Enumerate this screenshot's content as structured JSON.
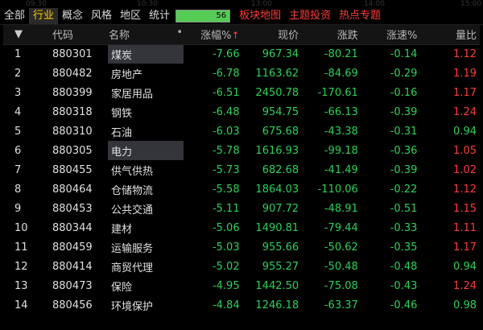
{
  "ghost_times": [
    "09:30",
    "10:30",
    "13:00",
    "14:00",
    "15:00"
  ],
  "tabs": [
    {
      "label": "全部",
      "active": false,
      "red": false
    },
    {
      "label": "行业",
      "active": true,
      "red": false
    },
    {
      "label": "概念",
      "active": false,
      "red": false
    },
    {
      "label": "风格",
      "active": false,
      "red": false
    },
    {
      "label": "地区",
      "active": false,
      "red": false
    },
    {
      "label": "统计",
      "active": false,
      "red": false
    }
  ],
  "tabbox_value": "56",
  "right_tabs": [
    "板块地图",
    "主题投资",
    "热点专题"
  ],
  "header": {
    "sort_arrow": "▼",
    "code": "代码",
    "name": "名称",
    "name_dot": "•",
    "change_pct": "涨幅%",
    "sort_indicator": "↑",
    "price": "现价",
    "change": "涨跌",
    "speed": "涨速%",
    "volume_ratio": "量比"
  },
  "rows": [
    {
      "idx": "1",
      "code": "880301",
      "name": "煤炭",
      "pct": "-7.66",
      "price": "967.34",
      "change": "-80.21",
      "speed": "-0.14",
      "ratio": "1.12",
      "ratio_color": "red",
      "highlight": true
    },
    {
      "idx": "2",
      "code": "880482",
      "name": "房地产",
      "pct": "-6.78",
      "price": "1163.62",
      "change": "-84.69",
      "speed": "-0.29",
      "ratio": "1.19",
      "ratio_color": "red",
      "highlight": false
    },
    {
      "idx": "3",
      "code": "880399",
      "name": "家居用品",
      "pct": "-6.51",
      "price": "2450.78",
      "change": "-170.61",
      "speed": "-0.16",
      "ratio": "1.17",
      "ratio_color": "red",
      "highlight": false
    },
    {
      "idx": "4",
      "code": "880318",
      "name": "钢铁",
      "pct": "-6.48",
      "price": "954.75",
      "change": "-66.13",
      "speed": "-0.39",
      "ratio": "1.24",
      "ratio_color": "red",
      "highlight": false
    },
    {
      "idx": "5",
      "code": "880310",
      "name": "石油",
      "pct": "-6.03",
      "price": "675.68",
      "change": "-43.38",
      "speed": "-0.31",
      "ratio": "0.94",
      "ratio_color": "green",
      "highlight": false
    },
    {
      "idx": "6",
      "code": "880305",
      "name": "电力",
      "pct": "-5.78",
      "price": "1616.93",
      "change": "-99.18",
      "speed": "-0.36",
      "ratio": "1.05",
      "ratio_color": "red",
      "highlight": true
    },
    {
      "idx": "7",
      "code": "880455",
      "name": "供气供热",
      "pct": "-5.73",
      "price": "682.68",
      "change": "-41.49",
      "speed": "-0.39",
      "ratio": "1.02",
      "ratio_color": "red",
      "highlight": false
    },
    {
      "idx": "8",
      "code": "880464",
      "name": "仓储物流",
      "pct": "-5.58",
      "price": "1864.03",
      "change": "-110.06",
      "speed": "-0.22",
      "ratio": "1.12",
      "ratio_color": "red",
      "highlight": false
    },
    {
      "idx": "9",
      "code": "880453",
      "name": "公共交通",
      "pct": "-5.11",
      "price": "907.72",
      "change": "-48.91",
      "speed": "-0.51",
      "ratio": "1.15",
      "ratio_color": "red",
      "highlight": false
    },
    {
      "idx": "10",
      "code": "880344",
      "name": "建材",
      "pct": "-5.06",
      "price": "1490.81",
      "change": "-79.44",
      "speed": "-0.33",
      "ratio": "1.11",
      "ratio_color": "red",
      "highlight": false
    },
    {
      "idx": "11",
      "code": "880459",
      "name": "运输服务",
      "pct": "-5.03",
      "price": "955.66",
      "change": "-50.62",
      "speed": "-0.35",
      "ratio": "1.17",
      "ratio_color": "red",
      "highlight": false
    },
    {
      "idx": "12",
      "code": "880414",
      "name": "商贸代理",
      "pct": "-5.02",
      "price": "955.27",
      "change": "-50.48",
      "speed": "-0.48",
      "ratio": "0.94",
      "ratio_color": "green",
      "highlight": false
    },
    {
      "idx": "13",
      "code": "880473",
      "name": "保险",
      "pct": "-4.95",
      "price": "1442.50",
      "change": "-75.08",
      "speed": "-0.43",
      "ratio": "1.24",
      "ratio_color": "red",
      "highlight": false
    },
    {
      "idx": "14",
      "code": "880456",
      "name": "环境保护",
      "pct": "-4.84",
      "price": "1246.18",
      "change": "-63.37",
      "speed": "-0.46",
      "ratio": "0.98",
      "ratio_color": "green",
      "highlight": false
    }
  ]
}
